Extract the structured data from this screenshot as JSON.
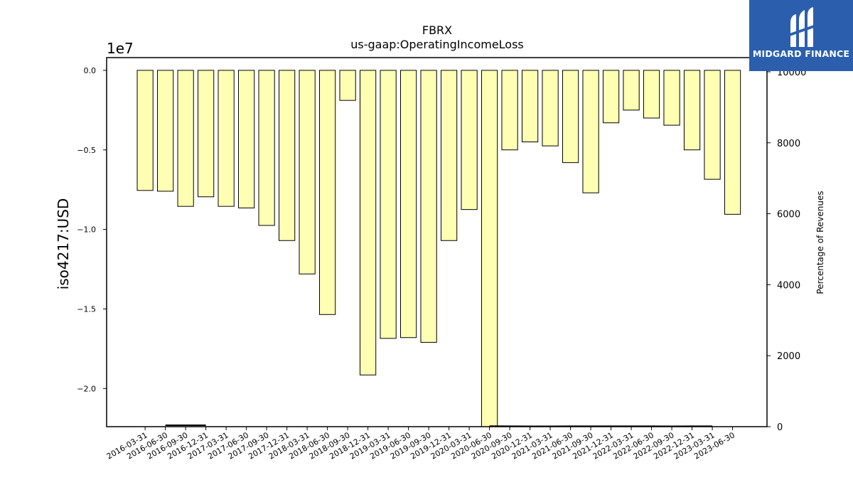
{
  "brand": {
    "name": "MIDGARD FINANCE",
    "color": "#2b5fae"
  },
  "chart_data": {
    "type": "bar",
    "title": "FBRX",
    "subtitle": "us-gaap:OperatingIncomeLoss",
    "ylabel": "iso4217:USD",
    "y_offset_label": "1e7",
    "y2label": "Percentage of Revenues",
    "ylim": [
      -22400000,
      800000
    ],
    "y_ticks": [
      0.0,
      -0.5,
      -1.0,
      -1.5,
      -2.0
    ],
    "y_tick_labels": [
      "0.0",
      "−0.5",
      "−1.0",
      "−1.5",
      "−2.0"
    ],
    "y2lim": [
      0,
      10400
    ],
    "y2_ticks": [
      0,
      2000,
      4000,
      6000,
      8000,
      10000
    ],
    "y2_tick_labels": [
      "0",
      "2000",
      "4000",
      "6000",
      "8000",
      "10000"
    ],
    "bar_color": "#ffffb3",
    "categories": [
      "2016-03-31",
      "2016-06-30",
      "2016-09-30",
      "2016-12-31",
      "2017-03-31",
      "2017-06-30",
      "2017-09-30",
      "2017-12-31",
      "2018-03-31",
      "2018-06-30",
      "2018-09-30",
      "2018-12-31",
      "2019-03-31",
      "2019-06-30",
      "2019-09-30",
      "2019-12-31",
      "2020-03-31",
      "2020-06-30",
      "2020-09-30",
      "2020-12-31",
      "2021-03-31",
      "2021-06-30",
      "2021-09-30",
      "2021-12-31",
      "2022-03-31",
      "2022-06-30",
      "2022-09-30",
      "2022-12-31",
      "2023-03-31",
      "2023-06-30"
    ],
    "series": [
      {
        "values": [
          -7550000,
          -7600000,
          -8550000,
          -7950000,
          -8550000,
          -8650000,
          -9750000,
          -10700000,
          -12800000,
          -15350000,
          -1890000,
          -19150000,
          -16850000,
          -16800000,
          -17100000,
          -10700000,
          -8750000,
          -22400000,
          -5000000,
          -4500000,
          -4750000,
          -5800000,
          -7700000,
          -3300000,
          -2500000,
          -3000000,
          -3450000,
          -5000000,
          -6850000,
          -9050000
        ]
      },
      {
        "values": [
          null,
          40,
          40,
          40,
          null,
          null,
          null,
          null,
          null,
          null,
          null,
          null,
          null,
          null,
          null,
          null,
          null,
          14,
          12,
          11,
          11,
          12,
          13,
          12,
          12,
          12,
          11,
          12,
          12,
          null
        ]
      }
    ],
    "grid": false
  }
}
